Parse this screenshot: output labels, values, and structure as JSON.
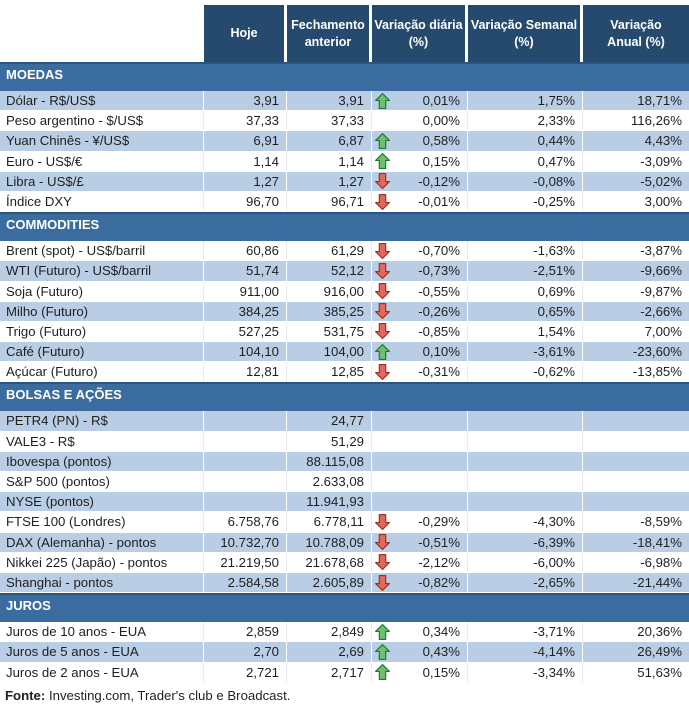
{
  "header": {
    "columns": [
      {
        "label": "Hoje",
        "name": "col-hoje"
      },
      {
        "label": "Fechamento\nanterior",
        "name": "col-fechamento-anterior"
      },
      {
        "label": "Variação diária\n(%)",
        "name": "col-variacao-diaria"
      },
      {
        "label": "Variação Semanal\n(%)",
        "name": "col-variacao-semanal"
      },
      {
        "label": "Variação\nAnual (%)",
        "name": "col-variacao-anual"
      }
    ]
  },
  "sections": [
    {
      "title": "MOEDAS",
      "rows": [
        {
          "label": "Dólar - R$/US$",
          "hoje": "3,91",
          "fechamento": "3,91",
          "arrow": "up",
          "diaria": "0,01%",
          "semanal": "1,75%",
          "anual": "18,71%",
          "shaded": true
        },
        {
          "label": "Peso argentino - $/US$",
          "hoje": "37,33",
          "fechamento": "37,33",
          "arrow": null,
          "diaria": "0,00%",
          "semanal": "2,33%",
          "anual": "116,26%",
          "shaded": false
        },
        {
          "label": "Yuan Chinês - ¥/US$",
          "hoje": "6,91",
          "fechamento": "6,87",
          "arrow": "up",
          "diaria": "0,58%",
          "semanal": "0,44%",
          "anual": "4,43%",
          "shaded": true
        },
        {
          "label": "Euro - US$/€",
          "hoje": "1,14",
          "fechamento": "1,14",
          "arrow": "up",
          "diaria": "0,15%",
          "semanal": "0,47%",
          "anual": "-3,09%",
          "shaded": false
        },
        {
          "label": "Libra - US$/£",
          "hoje": "1,27",
          "fechamento": "1,27",
          "arrow": "down",
          "diaria": "-0,12%",
          "semanal": "-0,08%",
          "anual": "-5,02%",
          "shaded": true
        },
        {
          "label": "Índice DXY",
          "hoje": "96,70",
          "fechamento": "96,71",
          "arrow": "down",
          "diaria": "-0,01%",
          "semanal": "-0,25%",
          "anual": "3,00%",
          "shaded": false
        }
      ]
    },
    {
      "title": "COMMODITIES",
      "rows": [
        {
          "label": "Brent (spot) - US$/barril",
          "hoje": "60,86",
          "fechamento": "61,29",
          "arrow": "down",
          "diaria": "-0,70%",
          "semanal": "-1,63%",
          "anual": "-3,87%",
          "shaded": false
        },
        {
          "label": "WTI (Futuro) - US$/barril",
          "hoje": "51,74",
          "fechamento": "52,12",
          "arrow": "down",
          "diaria": "-0,73%",
          "semanal": "-2,51%",
          "anual": "-9,66%",
          "shaded": true
        },
        {
          "label": "Soja (Futuro)",
          "hoje": "911,00",
          "fechamento": "916,00",
          "arrow": "down",
          "diaria": "-0,55%",
          "semanal": "0,69%",
          "anual": "-9,87%",
          "shaded": false
        },
        {
          "label": "Milho (Futuro)",
          "hoje": "384,25",
          "fechamento": "385,25",
          "arrow": "down",
          "diaria": "-0,26%",
          "semanal": "0,65%",
          "anual": "-2,66%",
          "shaded": true
        },
        {
          "label": "Trigo (Futuro)",
          "hoje": "527,25",
          "fechamento": "531,75",
          "arrow": "down",
          "diaria": "-0,85%",
          "semanal": "1,54%",
          "anual": "7,00%",
          "shaded": false
        },
        {
          "label": "Café (Futuro)",
          "hoje": "104,10",
          "fechamento": "104,00",
          "arrow": "up",
          "diaria": "0,10%",
          "semanal": "-3,61%",
          "anual": "-23,60%",
          "shaded": true
        },
        {
          "label": "Açúcar (Futuro)",
          "hoje": "12,81",
          "fechamento": "12,85",
          "arrow": "down",
          "diaria": "-0,31%",
          "semanal": "-0,62%",
          "anual": "-13,85%",
          "shaded": false
        }
      ]
    },
    {
      "title": "BOLSAS E AÇÕES",
      "rows": [
        {
          "label": "PETR4 (PN) - R$",
          "hoje": "",
          "fechamento": "24,77",
          "arrow": null,
          "diaria": "",
          "semanal": "",
          "anual": "",
          "shaded": true
        },
        {
          "label": "VALE3 - R$",
          "hoje": "",
          "fechamento": "51,29",
          "arrow": null,
          "diaria": "",
          "semanal": "",
          "anual": "",
          "shaded": false
        },
        {
          "label": "Ibovespa (pontos)",
          "hoje": "",
          "fechamento": "88.115,08",
          "arrow": null,
          "diaria": "",
          "semanal": "",
          "anual": "",
          "shaded": true
        },
        {
          "label": "S&P 500 (pontos)",
          "hoje": "",
          "fechamento": "2.633,08",
          "arrow": null,
          "diaria": "",
          "semanal": "",
          "anual": "",
          "shaded": false
        },
        {
          "label": "NYSE (pontos)",
          "hoje": "",
          "fechamento": "11.941,93",
          "arrow": null,
          "diaria": "",
          "semanal": "",
          "anual": "",
          "shaded": true
        },
        {
          "label": "FTSE 100 (Londres)",
          "hoje": "6.758,76",
          "fechamento": "6.778,11",
          "arrow": "down",
          "diaria": "-0,29%",
          "semanal": "-4,30%",
          "anual": "-8,59%",
          "shaded": false
        },
        {
          "label": "DAX (Alemanha) - pontos",
          "hoje": "10.732,70",
          "fechamento": "10.788,09",
          "arrow": "down",
          "diaria": "-0,51%",
          "semanal": "-6,39%",
          "anual": "-18,41%",
          "shaded": true
        },
        {
          "label": "Nikkei 225 (Japão) - pontos",
          "hoje": "21.219,50",
          "fechamento": "21.678,68",
          "arrow": "down",
          "diaria": "-2,12%",
          "semanal": "-6,00%",
          "anual": "-6,98%",
          "shaded": false
        },
        {
          "label": "Shanghai - pontos",
          "hoje": "2.584,58",
          "fechamento": "2.605,89",
          "arrow": "down",
          "diaria": "-0,82%",
          "semanal": "-2,65%",
          "anual": "-21,44%",
          "shaded": true
        }
      ]
    },
    {
      "title": "JUROS",
      "rows": [
        {
          "label": "Juros de 10 anos - EUA",
          "hoje": "2,859",
          "fechamento": "2,849",
          "arrow": "up",
          "diaria": "0,34%",
          "semanal": "-3,71%",
          "anual": "20,36%",
          "shaded": false
        },
        {
          "label": "Juros de 5 anos - EUA",
          "hoje": "2,70",
          "fechamento": "2,69",
          "arrow": "up",
          "diaria": "0,43%",
          "semanal": "-4,14%",
          "anual": "26,49%",
          "shaded": true
        },
        {
          "label": "Juros de 2 anos - EUA",
          "hoje": "2,721",
          "fechamento": "2,717",
          "arrow": "up",
          "diaria": "0,15%",
          "semanal": "-3,34%",
          "anual": "51,63%",
          "shaded": false
        }
      ]
    }
  ],
  "footer": {
    "label": "Fonte:",
    "text": " Investing.com, Trader's club e Broadcast."
  },
  "colors": {
    "header_bg": "#264a6e",
    "section_bg": "#3a6ca0",
    "section_border": "#2b5480",
    "row_shade": "#b9cde4",
    "arrow_up_fill": "#6fbf6f",
    "arrow_up_stroke": "#1e7a34",
    "arrow_down_fill": "#e2685c",
    "arrow_down_stroke": "#9e2f23"
  }
}
